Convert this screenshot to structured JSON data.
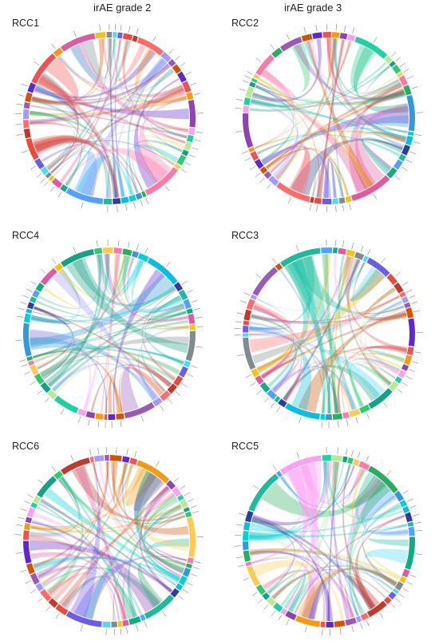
{
  "headers": {
    "left": "irAE grade 2",
    "right": "irAE grade 3"
  },
  "panels": [
    {
      "label": "RCC1",
      "seed": 11
    },
    {
      "label": "RCC2",
      "seed": 23
    },
    {
      "label": "RCC4",
      "seed": 37
    },
    {
      "label": "RCC3",
      "seed": 41
    },
    {
      "label": "RCC6",
      "seed": 53
    },
    {
      "label": "RCC5",
      "seed": 67
    }
  ],
  "colors": {
    "palette": [
      "#e05aa0",
      "#f39c12",
      "#2c3e99",
      "#9b59b6",
      "#27ae60",
      "#e74c3c",
      "#16a085",
      "#f1c40f",
      "#8e44ad",
      "#1abc9c",
      "#d35400",
      "#3498db",
      "#c0392b",
      "#2ecc71",
      "#7f8c8d",
      "#ff9ff3",
      "#54a0ff",
      "#5f27cd",
      "#00d2d3",
      "#ff6b6b",
      "#feca57",
      "#48dbfb",
      "#1dd1a1",
      "#10ac84",
      "#ee5253",
      "#0abde3",
      "#a29bfe",
      "#fd79a8",
      "#6c5ce7",
      "#b8e994"
    ],
    "ribbon_opacity": 0.35
  }
}
